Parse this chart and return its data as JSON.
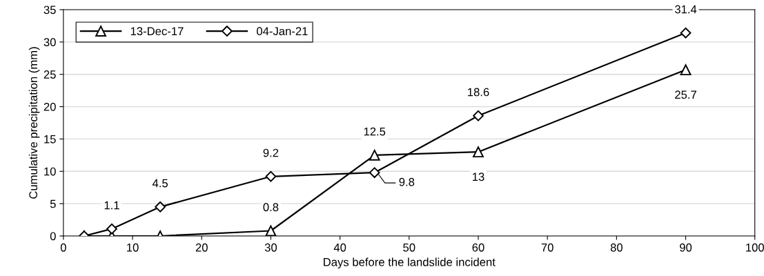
{
  "chart_data": {
    "type": "line",
    "xlabel": "Days before the landslide incident",
    "ylabel": "Cumulative precipitation (mm)",
    "xlim": [
      0,
      100
    ],
    "xticks": [
      0,
      10,
      20,
      30,
      40,
      50,
      60,
      70,
      80,
      90,
      100
    ],
    "ylim": [
      0,
      35
    ],
    "yticks": [
      0,
      5,
      10,
      15,
      20,
      25,
      30,
      35
    ],
    "grid": "y",
    "legend": "top left",
    "line_style": "solid",
    "series": [
      {
        "name": "13-Dec-17",
        "color": "#000000",
        "marker": "triangle",
        "x": [
          3,
          7,
          14,
          30,
          45,
          60,
          90
        ],
        "values": [
          0,
          0,
          0,
          0.8,
          12.5,
          13,
          25.7
        ],
        "value_labels": [
          null,
          null,
          null,
          "0.8",
          "12.5",
          "13",
          "25.7"
        ]
      },
      {
        "name": "04-Jan-21",
        "color": "#000000",
        "marker": "diamond",
        "x": [
          3,
          7,
          14,
          30,
          45,
          60,
          90
        ],
        "values": [
          0,
          1.1,
          4.5,
          9.2,
          9.8,
          18.6,
          31.4
        ],
        "value_labels": [
          null,
          "1.1",
          "4.5",
          "9.2",
          "9.8",
          "18.6",
          "31.4"
        ]
      }
    ]
  }
}
